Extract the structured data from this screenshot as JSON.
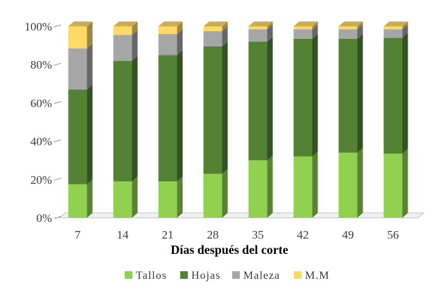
{
  "chart_data": {
    "type": "bar",
    "stacked": true,
    "percent": true,
    "style": "3d-columns",
    "categories": [
      "7",
      "14",
      "21",
      "28",
      "35",
      "42",
      "49",
      "56"
    ],
    "series": [
      {
        "name": "Tallos",
        "color": "#92d050",
        "values": [
          17.5,
          19,
          19,
          23,
          30,
          32,
          34,
          33.5
        ]
      },
      {
        "name": "Hojas",
        "color": "#548235",
        "values": [
          49.5,
          63,
          66,
          66.5,
          62,
          61.5,
          59.5,
          60.5
        ]
      },
      {
        "name": "Maleza",
        "color": "#a6a6a6",
        "values": [
          21.5,
          13.5,
          11,
          8,
          6.5,
          5,
          5,
          4.5
        ]
      },
      {
        "name": "M.M",
        "color": "#ffd966",
        "values": [
          11.5,
          4.5,
          4,
          2.5,
          1.5,
          1.5,
          1.5,
          1.5
        ]
      }
    ],
    "y_ticks": [
      "0%",
      "20%",
      "40%",
      "60%",
      "80%",
      "100%"
    ],
    "ylim": [
      0,
      100
    ],
    "xlabel": "Días después del corte",
    "legend_position": "bottom",
    "grid": false
  }
}
